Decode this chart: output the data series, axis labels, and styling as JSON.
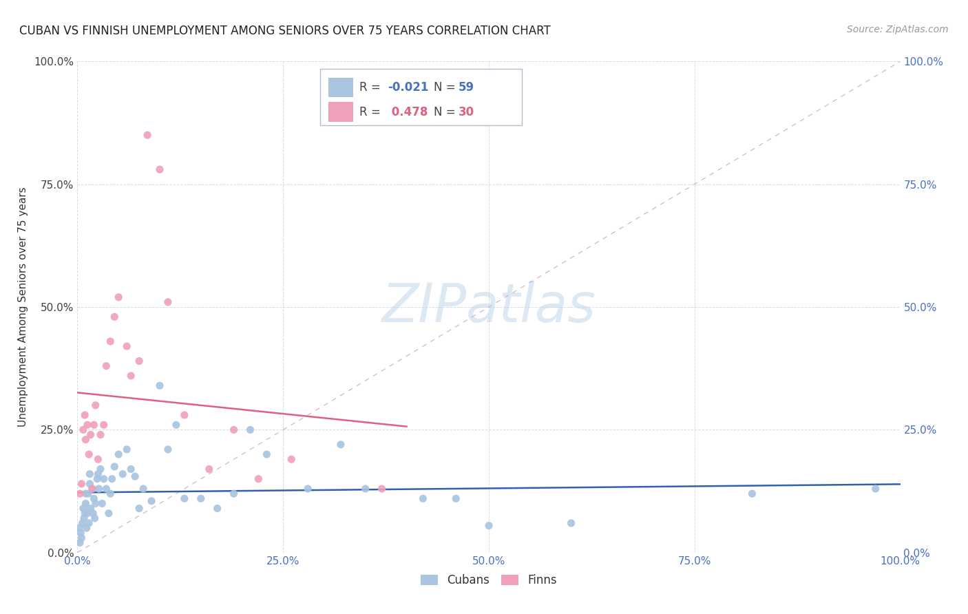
{
  "title": "CUBAN VS FINNISH UNEMPLOYMENT AMONG SENIORS OVER 75 YEARS CORRELATION CHART",
  "source": "Source: ZipAtlas.com",
  "ylabel": "Unemployment Among Seniors over 75 years",
  "xlim": [
    0.0,
    1.0
  ],
  "ylim": [
    0.0,
    1.0
  ],
  "cubans_R": -0.021,
  "cubans_N": 59,
  "finns_R": 0.478,
  "finns_N": 30,
  "cubans_color": "#a8c4e0",
  "finns_color": "#f0a0b8",
  "cubans_line_color": "#3060b0",
  "finns_line_color": "#e06080",
  "diagonal_color": "#c8b0c0",
  "watermark_color": "#dce8f4",
  "cubans_x": [
    0.002,
    0.003,
    0.004,
    0.005,
    0.006,
    0.007,
    0.008,
    0.009,
    0.01,
    0.01,
    0.011,
    0.012,
    0.013,
    0.014,
    0.015,
    0.015,
    0.016,
    0.018,
    0.019,
    0.02,
    0.021,
    0.022,
    0.024,
    0.025,
    0.026,
    0.028,
    0.03,
    0.032,
    0.035,
    0.038,
    0.04,
    0.042,
    0.045,
    0.05,
    0.055,
    0.06,
    0.065,
    0.07,
    0.075,
    0.08,
    0.09,
    0.1,
    0.11,
    0.12,
    0.13,
    0.15,
    0.17,
    0.19,
    0.21,
    0.23,
    0.28,
    0.32,
    0.35,
    0.42,
    0.46,
    0.5,
    0.6,
    0.82,
    0.97
  ],
  "cubans_y": [
    0.05,
    0.02,
    0.04,
    0.03,
    0.06,
    0.09,
    0.07,
    0.08,
    0.1,
    0.12,
    0.05,
    0.08,
    0.12,
    0.06,
    0.14,
    0.16,
    0.09,
    0.13,
    0.08,
    0.11,
    0.07,
    0.1,
    0.15,
    0.16,
    0.13,
    0.17,
    0.1,
    0.15,
    0.13,
    0.08,
    0.12,
    0.15,
    0.175,
    0.2,
    0.16,
    0.21,
    0.17,
    0.155,
    0.09,
    0.13,
    0.105,
    0.34,
    0.21,
    0.26,
    0.11,
    0.11,
    0.09,
    0.12,
    0.25,
    0.2,
    0.13,
    0.22,
    0.13,
    0.11,
    0.11,
    0.055,
    0.06,
    0.12,
    0.13
  ],
  "finns_x": [
    0.003,
    0.005,
    0.007,
    0.009,
    0.01,
    0.012,
    0.014,
    0.016,
    0.018,
    0.02,
    0.022,
    0.025,
    0.028,
    0.032,
    0.035,
    0.04,
    0.045,
    0.05,
    0.06,
    0.065,
    0.075,
    0.085,
    0.1,
    0.11,
    0.13,
    0.16,
    0.19,
    0.22,
    0.26,
    0.37
  ],
  "finns_y": [
    0.12,
    0.14,
    0.25,
    0.28,
    0.23,
    0.26,
    0.2,
    0.24,
    0.13,
    0.26,
    0.3,
    0.19,
    0.24,
    0.26,
    0.38,
    0.43,
    0.48,
    0.52,
    0.42,
    0.36,
    0.39,
    0.85,
    0.78,
    0.51,
    0.28,
    0.17,
    0.25,
    0.15,
    0.19,
    0.13
  ]
}
